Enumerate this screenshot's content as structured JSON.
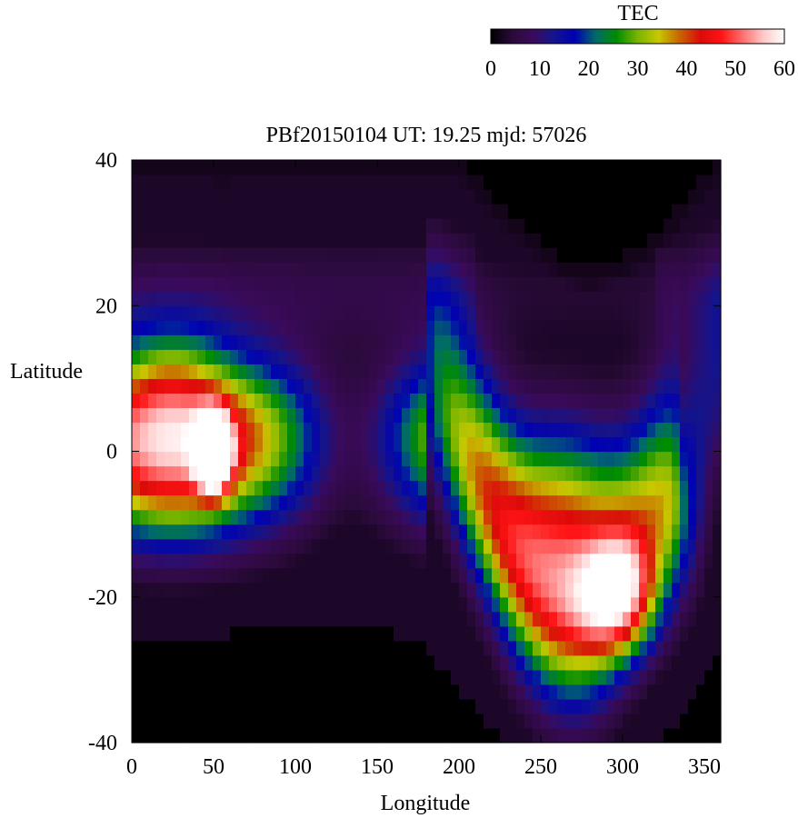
{
  "chart_data": {
    "type": "heatmap",
    "title": "PBf20150104  UT: 19.25  mjd: 57026",
    "xlabel": "Longitude",
    "ylabel": "Latitude",
    "xlim": [
      0,
      360
    ],
    "ylim": [
      -40,
      40
    ],
    "x_ticks": [
      0,
      50,
      100,
      150,
      200,
      250,
      300,
      350
    ],
    "y_ticks": [
      -40,
      -20,
      0,
      20,
      40
    ],
    "colorbar": {
      "label": "TEC",
      "range": [
        0,
        60
      ],
      "ticks": [
        0,
        10,
        20,
        30,
        40,
        50,
        60
      ],
      "colors": [
        "#000000",
        "#2a0a3a",
        "#3a0a5a",
        "#14148c",
        "#0000b4",
        "#006a6a",
        "#008c00",
        "#78b400",
        "#c8c800",
        "#c86400",
        "#dc0a0a",
        "#ff1414",
        "#ff6e6e",
        "#ffc8c8",
        "#ffffff"
      ]
    },
    "grid": false,
    "coverage_boundary": {
      "south_lat_by_lon": [
        [
          0,
          -26
        ],
        [
          40,
          -25
        ],
        [
          60,
          -25
        ],
        [
          100,
          -23
        ],
        [
          120,
          -23
        ],
        [
          160,
          -25
        ],
        [
          180,
          -27
        ],
        [
          195,
          -31
        ],
        [
          205,
          -34
        ],
        [
          215,
          -37
        ],
        [
          230,
          -40
        ],
        [
          320,
          -40
        ],
        [
          330,
          -38
        ],
        [
          345,
          -32
        ],
        [
          360,
          -26
        ]
      ],
      "north_lat_by_lon": [
        [
          0,
          40
        ],
        [
          50,
          40
        ],
        [
          55,
          39
        ],
        [
          60,
          40
        ],
        [
          200,
          40
        ],
        [
          210,
          38
        ],
        [
          220,
          35
        ],
        [
          235,
          32
        ],
        [
          250,
          29
        ],
        [
          265,
          26
        ],
        [
          280,
          25
        ],
        [
          295,
          26
        ],
        [
          310,
          28
        ],
        [
          325,
          31
        ],
        [
          340,
          35
        ],
        [
          350,
          38
        ],
        [
          360,
          40
        ]
      ]
    },
    "features": [
      {
        "lon": 50,
        "lat": 0,
        "tec": 58,
        "sigma_lon": 10,
        "sigma_lat": 5
      },
      {
        "lon": 25,
        "lat": 10,
        "tec": 14,
        "sigma_lon": 35,
        "sigma_lat": 9
      },
      {
        "lon": 25,
        "lat": -4,
        "tec": 15,
        "sigma_lon": 40,
        "sigma_lat": 10
      },
      {
        "lon": 300,
        "lat": -20,
        "tec": 30,
        "sigma_lon": 25,
        "sigma_lat": 8
      },
      {
        "lon": 265,
        "lat": -5,
        "tec": 14,
        "sigma_lon": 30,
        "sigma_lat": 12
      },
      {
        "lon": 335,
        "lat": -10,
        "tec": 14,
        "sigma_lon": 15,
        "sigma_lat": 10
      }
    ]
  }
}
